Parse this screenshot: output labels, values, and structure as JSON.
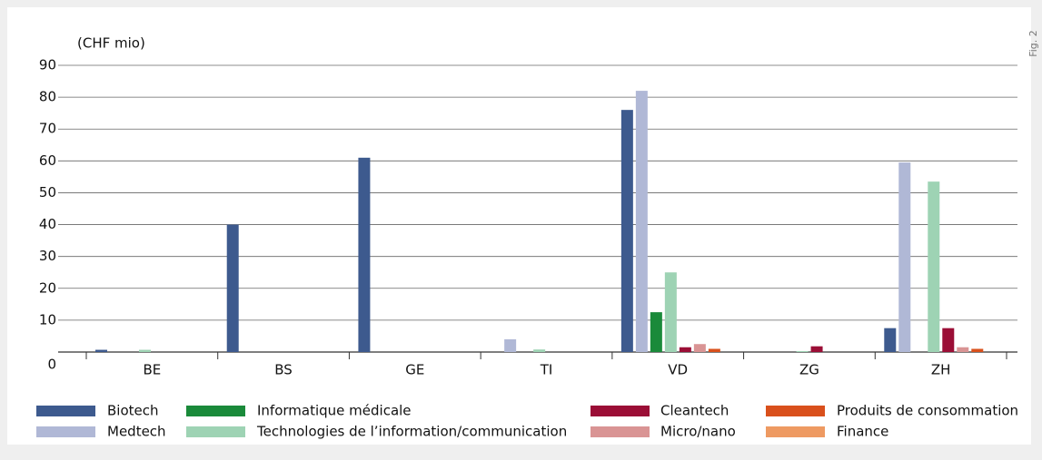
{
  "chart_data": {
    "type": "bar",
    "fig_label": "Fig. 2",
    "y_axis_label": "(CHF mio)",
    "categories": [
      "BE",
      "BS",
      "GE",
      "TI",
      "VD",
      "ZG",
      "ZH"
    ],
    "series": [
      {
        "name": "Biotech",
        "color": "#3d5a8e",
        "values": [
          0.7,
          40,
          61,
          0,
          76,
          0,
          7.5
        ]
      },
      {
        "name": "Medtech",
        "color": "#b0b8d6",
        "values": [
          0,
          0,
          0,
          4,
          82,
          0,
          59.5
        ]
      },
      {
        "name": "Informatique médicale",
        "color": "#1a8a3a",
        "values": [
          0,
          0,
          0,
          0,
          12.5,
          0,
          0
        ]
      },
      {
        "name": "Technologies de l’information/communication",
        "color": "#9ed3b4",
        "values": [
          0.7,
          0,
          0,
          0.8,
          25,
          0.3,
          53.5
        ]
      },
      {
        "name": "Cleantech",
        "color": "#9b0e36",
        "values": [
          0,
          0,
          0,
          0,
          1.5,
          1.8,
          7.5
        ]
      },
      {
        "name": "Micro/nano",
        "color": "#d99494",
        "values": [
          0,
          0,
          0,
          0,
          2.5,
          0,
          1.5
        ]
      },
      {
        "name": "Produits de consommation",
        "color": "#d9501c",
        "values": [
          0,
          0,
          0,
          0,
          1,
          0,
          1
        ]
      },
      {
        "name": "Finance",
        "color": "#ee9a62",
        "values": [
          0,
          0,
          0,
          0,
          0,
          0,
          0
        ]
      }
    ],
    "ylim": [
      0,
      90
    ],
    "yticks": [
      0,
      10,
      20,
      30,
      40,
      50,
      60,
      70,
      80,
      90
    ],
    "grid": true
  }
}
